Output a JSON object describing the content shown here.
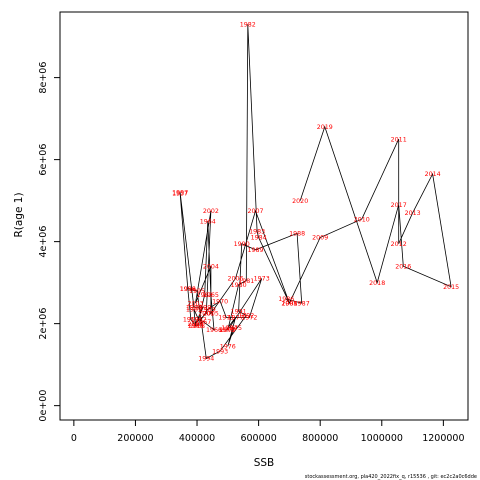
{
  "chart_data": {
    "type": "line",
    "xlabel": "SSB",
    "ylabel": "R(age 1)",
    "xlim": [
      -45000,
      1280000
    ],
    "ylim": [
      -350000,
      9600000
    ],
    "x_ticks": [
      0,
      200000,
      400000,
      600000,
      800000,
      1000000,
      1200000
    ],
    "x_tick_labels": [
      "0",
      "200000",
      "400000",
      "600000",
      "800000",
      "1000000",
      "1200000"
    ],
    "y_ticks": [
      0,
      2000000,
      4000000,
      6000000,
      8000000
    ],
    "y_tick_labels": [
      "0e+00",
      "2e+06",
      "4e+06",
      "6e+06",
      "8e+06"
    ],
    "grid": false,
    "legend": "none",
    "line_color": "#000000",
    "label_color": "#ff0000",
    "points": [
      {
        "year": "1957",
        "ssb": 345000,
        "rec": 5180000
      },
      {
        "year": "1958",
        "ssb": 370000,
        "rec": 2850000
      },
      {
        "year": "1959",
        "ssb": 380000,
        "rec": 2100000
      },
      {
        "year": "1960",
        "ssb": 395000,
        "rec": 1950000
      },
      {
        "year": "1961",
        "ssb": 390000,
        "rec": 2350000
      },
      {
        "year": "1962",
        "ssb": 405000,
        "rec": 2100000
      },
      {
        "year": "1963",
        "ssb": 425000,
        "rec": 2700000
      },
      {
        "year": "1964",
        "ssb": 435000,
        "rec": 4500000
      },
      {
        "year": "1965",
        "ssb": 445000,
        "rec": 2700000
      },
      {
        "year": "1966",
        "ssb": 455000,
        "rec": 1850000
      },
      {
        "year": "1967",
        "ssb": 420000,
        "rec": 2050000
      },
      {
        "year": "1968",
        "ssb": 400000,
        "rec": 1950000
      },
      {
        "year": "1969",
        "ssb": 435000,
        "rec": 2350000
      },
      {
        "year": "1970",
        "ssb": 475000,
        "rec": 2550000
      },
      {
        "year": "1971",
        "ssb": 495000,
        "rec": 2150000
      },
      {
        "year": "1972",
        "ssb": 570000,
        "rec": 2150000
      },
      {
        "year": "1973",
        "ssb": 610000,
        "rec": 3100000
      },
      {
        "year": "1974",
        "ssb": 505000,
        "rec": 1900000
      },
      {
        "year": "1975",
        "ssb": 520000,
        "rec": 1900000
      },
      {
        "year": "1976",
        "ssb": 500000,
        "rec": 1450000
      },
      {
        "year": "1977",
        "ssb": 525000,
        "rec": 2150000
      },
      {
        "year": "1978",
        "ssb": 495000,
        "rec": 1850000
      },
      {
        "year": "1979",
        "ssb": 500000,
        "rec": 1850000
      },
      {
        "year": "1980",
        "ssb": 535000,
        "rec": 2950000
      },
      {
        "year": "1981",
        "ssb": 560000,
        "rec": 3050000
      },
      {
        "year": "1982",
        "ssb": 565000,
        "rec": 9300000
      },
      {
        "year": "1983",
        "ssb": 595000,
        "rec": 4250000
      },
      {
        "year": "1984",
        "ssb": 600000,
        "rec": 4100000
      },
      {
        "year": "1985",
        "ssb": 700000,
        "rec": 2500000
      },
      {
        "year": "1986",
        "ssb": 690000,
        "rec": 2600000
      },
      {
        "year": "1987",
        "ssb": 740000,
        "rec": 2500000
      },
      {
        "year": "1988",
        "ssb": 725000,
        "rec": 4200000
      },
      {
        "year": "1989",
        "ssb": 590000,
        "rec": 3800000
      },
      {
        "year": "1990",
        "ssb": 545000,
        "rec": 3950000
      },
      {
        "year": "1991",
        "ssb": 535000,
        "rec": 2300000
      },
      {
        "year": "1992",
        "ssb": 560000,
        "rec": 2200000
      },
      {
        "year": "1993",
        "ssb": 475000,
        "rec": 1330000
      },
      {
        "year": "1994",
        "ssb": 430000,
        "rec": 1150000
      },
      {
        "year": "1995",
        "ssb": 400000,
        "rec": 2800000
      },
      {
        "year": "1996",
        "ssb": 370000,
        "rec": 2850000
      },
      {
        "year": "1997",
        "ssb": 345000,
        "rec": 5200000
      },
      {
        "year": "1998",
        "ssb": 390000,
        "rec": 2400000
      },
      {
        "year": "1999",
        "ssb": 420000,
        "rec": 2400000
      },
      {
        "year": "2000",
        "ssb": 395000,
        "rec": 2000000
      },
      {
        "year": "2001",
        "ssb": 430000,
        "rec": 2250000
      },
      {
        "year": "2002",
        "ssb": 445000,
        "rec": 4750000
      },
      {
        "year": "2003",
        "ssb": 395000,
        "rec": 2500000
      },
      {
        "year": "2004",
        "ssb": 445000,
        "rec": 3400000
      },
      {
        "year": "2005",
        "ssb": 445000,
        "rec": 2250000
      },
      {
        "year": "2006",
        "ssb": 525000,
        "rec": 3100000
      },
      {
        "year": "2007",
        "ssb": 590000,
        "rec": 4750000
      },
      {
        "year": "2008",
        "ssb": 700000,
        "rec": 2500000
      },
      {
        "year": "2009",
        "ssb": 800000,
        "rec": 4100000
      },
      {
        "year": "2010",
        "ssb": 935000,
        "rec": 4550000
      },
      {
        "year": "2011",
        "ssb": 1055000,
        "rec": 6500000
      },
      {
        "year": "2012",
        "ssb": 1055000,
        "rec": 3950000
      },
      {
        "year": "2013",
        "ssb": 1100000,
        "rec": 4700000
      },
      {
        "year": "2014",
        "ssb": 1165000,
        "rec": 5650000
      },
      {
        "year": "2015",
        "ssb": 1225000,
        "rec": 2900000
      },
      {
        "year": "2016",
        "ssb": 1070000,
        "rec": 3400000
      },
      {
        "year": "2017",
        "ssb": 1055000,
        "rec": 4900000
      },
      {
        "year": "2018",
        "ssb": 985000,
        "rec": 3000000
      },
      {
        "year": "2019",
        "ssb": 815000,
        "rec": 6800000
      },
      {
        "year": "2020",
        "ssb": 735000,
        "rec": 5000000
      }
    ]
  },
  "footer": {
    "credit": "stockassessment.org, pla420_2022fix_q, r15536 , git: ec2c2a0c6dde"
  }
}
